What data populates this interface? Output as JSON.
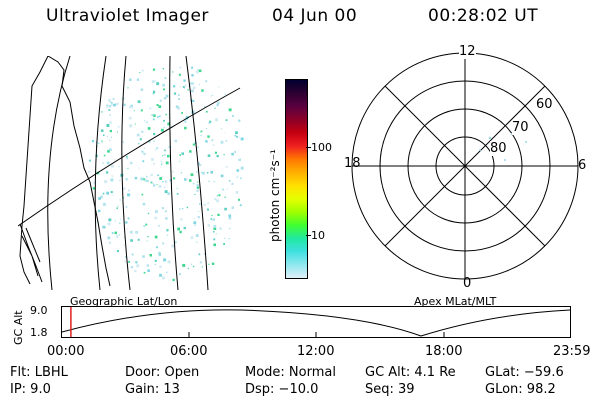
{
  "header": {
    "instrument": "Ultraviolet Imager",
    "date": "04 Jun 00",
    "time": "00:28:02 UT"
  },
  "colorbar": {
    "unit_label": "photon cm⁻²s⁻¹",
    "ticks": [
      "100",
      "10"
    ],
    "colors": [
      "#000030",
      "#2b0030",
      "#5a0040",
      "#8c0028",
      "#c40010",
      "#f02020",
      "#ff7800",
      "#ffb000",
      "#ffe000",
      "#e6ff00",
      "#a0ff00",
      "#40ff30",
      "#20e8a0",
      "#40e0e0",
      "#90e8f0",
      "#e0f0f8"
    ]
  },
  "polar_plot": {
    "labels": {
      "top": "12",
      "right": "6",
      "bottom": "0",
      "left": "18"
    },
    "lat_labels": [
      "60",
      "70",
      "80"
    ]
  },
  "map_captions": {
    "left": "Geographic Lat/Lon",
    "right": "Apex MLat/MLT"
  },
  "altitude_strip": {
    "ylabel": "GC Alt",
    "yticks": [
      "9.0",
      "1.8"
    ],
    "xticks": [
      "00:00",
      "06:00",
      "12:00",
      "18:00",
      "23:59"
    ],
    "current_time_fraction": 0.0195
  },
  "status": {
    "flt": "Flt: LBHL",
    "ip": "IP:  9.0",
    "door": "Door: Open",
    "gain": "Gain: 13",
    "mode": "Mode: Normal",
    "dsp": "Dsp:  −10.0",
    "gc_alt": "GC Alt: 4.1 Re",
    "seq": "Seq: 39",
    "glat": "GLat:  −59.6",
    "glon": "GLon:  98.2"
  }
}
